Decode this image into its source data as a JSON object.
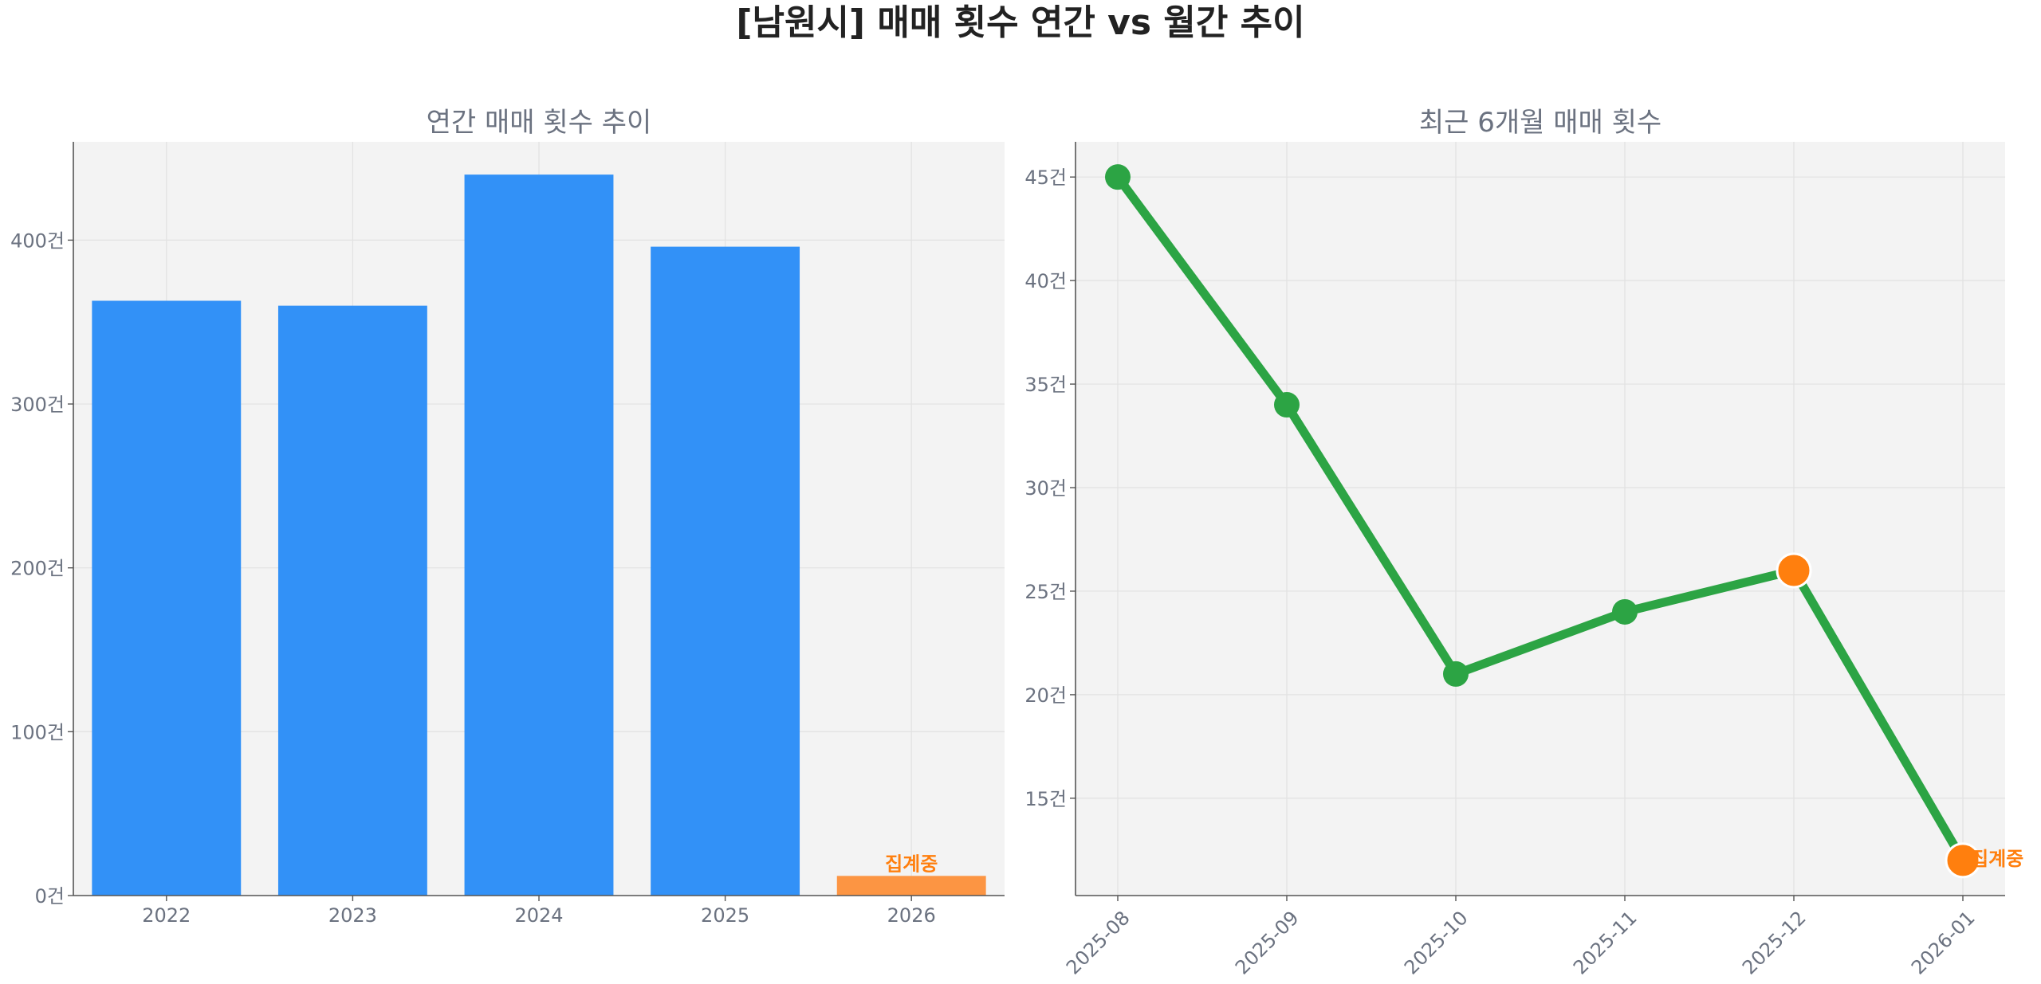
{
  "figure": {
    "title": "[남원시] 매매 횟수 연간 vs 월간 추이"
  },
  "chart_data": [
    {
      "type": "bar",
      "title": "연간 매매 횟수 추이",
      "xlabel": "",
      "ylabel": "",
      "categories": [
        "2022",
        "2023",
        "2024",
        "2025",
        "2026"
      ],
      "values": [
        363,
        360,
        440,
        396,
        12
      ],
      "bar_colors": [
        "#3291f7",
        "#3291f7",
        "#3291f7",
        "#3291f7",
        "#fc9543"
      ],
      "annotations": [
        {
          "category": "2026",
          "text": "집계중",
          "color": "#ff7f0e"
        }
      ],
      "ylim": [
        0,
        460
      ],
      "yticks": [
        0,
        100,
        200,
        300,
        400
      ],
      "ytick_labels": [
        "0건",
        "100건",
        "200건",
        "300건",
        "400건"
      ],
      "grid": true
    },
    {
      "type": "line",
      "title": "최근 6개월 매매 횟수",
      "xlabel": "",
      "ylabel": "",
      "x": [
        "2025-08",
        "2025-09",
        "2025-10",
        "2025-11",
        "2025-12",
        "2026-01"
      ],
      "values": [
        45,
        34,
        21,
        24,
        26,
        12
      ],
      "line_color": "#2ca444",
      "highlight_color": "#ff7f0e",
      "highlighted_points": [
        "2025-12",
        "2026-01"
      ],
      "annotations": [
        {
          "x": "2026-01",
          "text": "집계중",
          "color": "#ff7f0e"
        }
      ],
      "ylim": [
        10.3,
        46.7
      ],
      "yticks": [
        15,
        20,
        25,
        30,
        35,
        40,
        45
      ],
      "ytick_labels": [
        "15건",
        "20건",
        "25건",
        "30건",
        "35건",
        "40건",
        "45건"
      ],
      "xtick_rotation": 45,
      "grid": true
    }
  ]
}
